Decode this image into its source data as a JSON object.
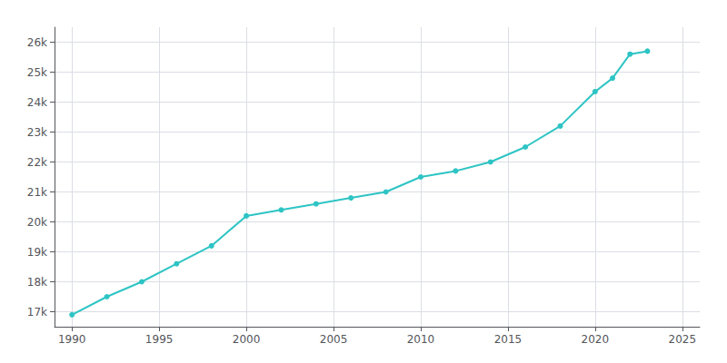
{
  "chart_data": {
    "type": "line",
    "x": [
      1990,
      1992,
      1994,
      1996,
      1998,
      2000,
      2002,
      2004,
      2006,
      2008,
      2010,
      2012,
      2014,
      2016,
      2018,
      2020,
      2021,
      2022,
      2023
    ],
    "values": [
      16900,
      17500,
      18000,
      18600,
      19200,
      20200,
      20400,
      20600,
      20800,
      21000,
      21500,
      21700,
      22000,
      22500,
      23200,
      24350,
      24800,
      25600,
      25700
    ],
    "color": "#2EC4C4",
    "marker": "circle",
    "xlim": [
      1989,
      2026
    ],
    "xticks": [
      1990,
      1995,
      2000,
      2005,
      2010,
      2015,
      2020,
      2025
    ],
    "ylim": [
      16500,
      26500
    ],
    "yticks": [
      {
        "value": 17000,
        "label": "17k"
      },
      {
        "value": 18000,
        "label": "18k"
      },
      {
        "value": 19000,
        "label": "19k"
      },
      {
        "value": 20000,
        "label": "20k"
      },
      {
        "value": 21000,
        "label": "21k"
      },
      {
        "value": 22000,
        "label": "22k"
      },
      {
        "value": 23000,
        "label": "23k"
      },
      {
        "value": 24000,
        "label": "24k"
      },
      {
        "value": 25000,
        "label": "25k"
      },
      {
        "value": 26000,
        "label": "26k"
      }
    ],
    "grid": true
  }
}
